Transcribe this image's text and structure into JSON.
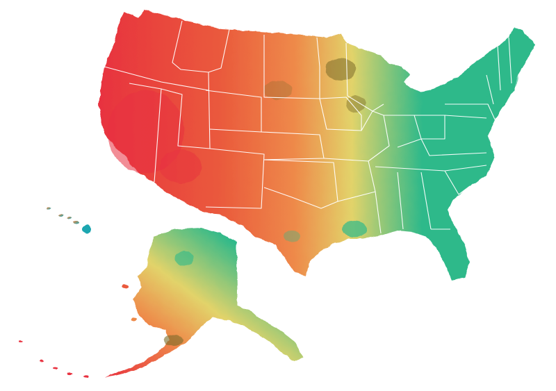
{
  "map": {
    "style": "watercolor",
    "regions": [
      "contiguous-united-states",
      "alaska",
      "hawaii"
    ],
    "colors": {
      "red": "#e8323f",
      "red_orange": "#ea5a3c",
      "orange": "#ee8a4a",
      "yellow": "#e2d36a",
      "olive": "#7a6a2a",
      "green": "#2fb98a",
      "teal": "#1aa6b0",
      "border": "#ffffff",
      "background": "#ffffff"
    }
  }
}
